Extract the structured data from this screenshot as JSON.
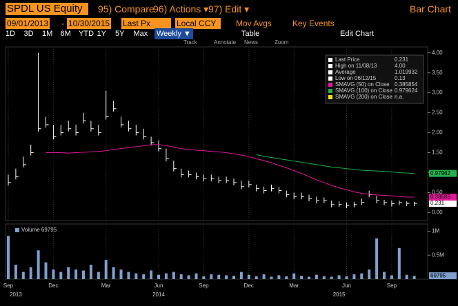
{
  "header": {
    "ticker": "SPDL US Equity",
    "compare": "95) Compare",
    "actions": "96) Actions ▾",
    "edit": "97) Edit ▾",
    "view": "Bar Chart"
  },
  "controls": {
    "start": "09/01/2013",
    "dash": "-",
    "end": "10/30/2015",
    "field": "Last Px",
    "currency": "Local CCY",
    "movavgs": "Mov Avgs",
    "events": "Key Events"
  },
  "periods": [
    "1D",
    "3D",
    "1M",
    "6M",
    "YTD",
    "1Y",
    "5Y",
    "Max"
  ],
  "frequency": "Weekly ▼",
  "table": "Table",
  "editchart": "Edit Chart",
  "tools": [
    "Track",
    "Annotate",
    "News",
    "Zoom"
  ],
  "chart_data": {
    "type": "bar",
    "categories": [
      "Sep",
      null,
      null,
      null,
      null,
      null,
      "Dec",
      null,
      null,
      null,
      null,
      null,
      null,
      "Mar",
      null,
      null,
      null,
      null,
      null,
      null,
      "Jun",
      null,
      null,
      null,
      null,
      null,
      "Sep",
      null,
      null,
      null,
      null,
      null,
      "Dec",
      null,
      null,
      null,
      null,
      null,
      "Mar",
      null,
      null,
      null,
      null,
      null,
      null,
      "Jun",
      null,
      null,
      null,
      null,
      null,
      "Sep",
      null,
      null,
      null
    ],
    "years": [
      null,
      "2013",
      null,
      null,
      null,
      null,
      null,
      null,
      null,
      null,
      null,
      null,
      null,
      null,
      null,
      null,
      null,
      null,
      null,
      null,
      "2014",
      null,
      null,
      null,
      null,
      null,
      null,
      null,
      null,
      null,
      null,
      null,
      null,
      null,
      null,
      null,
      null,
      null,
      null,
      null,
      null,
      null,
      null,
      null,
      "2015",
      null,
      null,
      null,
      null,
      null,
      null,
      null,
      null,
      null,
      null
    ],
    "series": [
      {
        "name": "Last Price",
        "color": "#ffffff",
        "values": [
          0.75,
          0.9,
          1.2,
          1.5,
          2.1,
          2.2,
          1.9,
          2.0,
          2.1,
          2.0,
          2.3,
          2.1,
          2.0,
          2.4,
          2.6,
          2.2,
          2.1,
          2.0,
          1.9,
          1.75,
          1.6,
          1.35,
          1.1,
          0.95,
          0.95,
          0.9,
          0.85,
          0.85,
          0.8,
          0.8,
          0.75,
          0.65,
          0.7,
          0.6,
          0.55,
          0.6,
          0.55,
          0.45,
          0.4,
          0.4,
          0.35,
          0.3,
          0.3,
          0.2,
          0.2,
          0.18,
          0.2,
          0.25,
          0.45,
          0.3,
          0.25,
          0.22,
          0.25,
          0.23,
          0.231
        ],
        "high": [
          0.95,
          1.1,
          1.4,
          1.7,
          4.0,
          2.4,
          2.2,
          2.2,
          2.3,
          2.2,
          2.5,
          2.3,
          2.2,
          3.05,
          2.8,
          2.4,
          2.3,
          2.2,
          2.1,
          1.9,
          1.8,
          1.6,
          1.3,
          1.1,
          1.05,
          1.0,
          0.95,
          0.95,
          0.9,
          0.9,
          0.85,
          0.8,
          0.8,
          0.7,
          0.65,
          0.7,
          0.65,
          0.55,
          0.5,
          0.5,
          0.45,
          0.4,
          0.38,
          0.3,
          0.28,
          0.25,
          0.27,
          0.35,
          0.55,
          0.42,
          0.32,
          0.3,
          0.3,
          0.28,
          0.27
        ]
      },
      {
        "name": "SMAVG (50) on Close",
        "color": "#e0189a",
        "values": [
          null,
          null,
          null,
          null,
          null,
          1.5,
          1.5,
          1.5,
          1.49,
          1.5,
          1.51,
          1.52,
          1.53,
          1.55,
          1.58,
          1.6,
          1.63,
          1.65,
          1.67,
          1.7,
          1.7,
          1.68,
          1.64,
          1.6,
          1.58,
          1.56,
          1.55,
          1.53,
          1.52,
          1.5,
          1.47,
          1.44,
          1.4,
          1.35,
          1.3,
          1.25,
          1.18,
          1.12,
          1.05,
          0.98,
          0.9,
          0.82,
          0.75,
          0.68,
          0.62,
          0.57,
          0.52,
          0.48,
          0.46,
          0.44,
          0.43,
          0.42,
          0.4,
          0.39,
          0.386
        ]
      },
      {
        "name": "SMAVG (100) on Close",
        "color": "#22b24c",
        "values": [
          null,
          null,
          null,
          null,
          null,
          null,
          null,
          null,
          null,
          null,
          null,
          null,
          null,
          null,
          null,
          null,
          null,
          null,
          null,
          null,
          null,
          null,
          null,
          null,
          null,
          null,
          null,
          null,
          null,
          null,
          null,
          null,
          null,
          1.45,
          1.41,
          1.38,
          1.35,
          1.32,
          1.29,
          1.26,
          1.23,
          1.2,
          1.17,
          1.14,
          1.12,
          1.1,
          1.08,
          1.06,
          1.05,
          1.04,
          1.03,
          1.02,
          1.0,
          0.99,
          0.98
        ]
      }
    ],
    "end_labels": [
      "0.231",
      "0.38585",
      "0.97962"
    ],
    "ylim": [
      -0.2,
      4.15
    ],
    "yticks": [
      {
        "value": 0,
        "label": "0.00"
      },
      {
        "value": 0.5,
        "label": "0.50"
      },
      {
        "value": 1,
        "label": "1.00"
      },
      {
        "value": 1.5,
        "label": "1.50"
      },
      {
        "value": 2,
        "label": "2.00"
      },
      {
        "value": 2.5,
        "label": "2.50"
      },
      {
        "value": 3,
        "label": "3.00"
      },
      {
        "value": 3.5,
        "label": "3.50"
      },
      {
        "value": 4,
        "label": "4.00"
      }
    ],
    "legend": [
      [
        "Last Price",
        "0.231"
      ],
      [
        "High on 11/08/13",
        "4.00"
      ],
      [
        "Average",
        "1.019932"
      ],
      [
        "Low on 06/12/15",
        "0.13"
      ],
      [
        "SMAVG (50) on Close",
        "0.385854"
      ],
      [
        "SMAVG (100) on Close",
        "0.979624"
      ],
      [
        "SMAVG (200) on Close",
        "n.a."
      ]
    ],
    "legend_colors": [
      "#ffffff",
      "#ffffff",
      "#ffffff",
      "#ffffff",
      "#e0189a",
      "#22b24c",
      "#f0e020"
    ],
    "volume": {
      "name": "Volume 69795",
      "end_label": "69795",
      "color": "#7f9fcf",
      "values": [
        900000,
        300000,
        150000,
        250000,
        600000,
        350000,
        200000,
        150000,
        250000,
        200000,
        180000,
        300000,
        150000,
        400000,
        250000,
        200000,
        150000,
        120000,
        100000,
        180000,
        90000,
        120000,
        150000,
        100000,
        80000,
        120000,
        60000,
        100000,
        90000,
        80000,
        70000,
        150000,
        90000,
        60000,
        100000,
        50000,
        80000,
        60000,
        120000,
        70000,
        50000,
        90000,
        60000,
        50000,
        80000,
        60000,
        100000,
        120000,
        200000,
        850000,
        150000,
        80000,
        650000,
        90000,
        69795
      ],
      "ylim": [
        0,
        1150000
      ],
      "yticks": [
        {
          "value": 500000,
          "label": "0.5M"
        },
        {
          "value": 1000000,
          "label": "1M"
        }
      ]
    }
  }
}
